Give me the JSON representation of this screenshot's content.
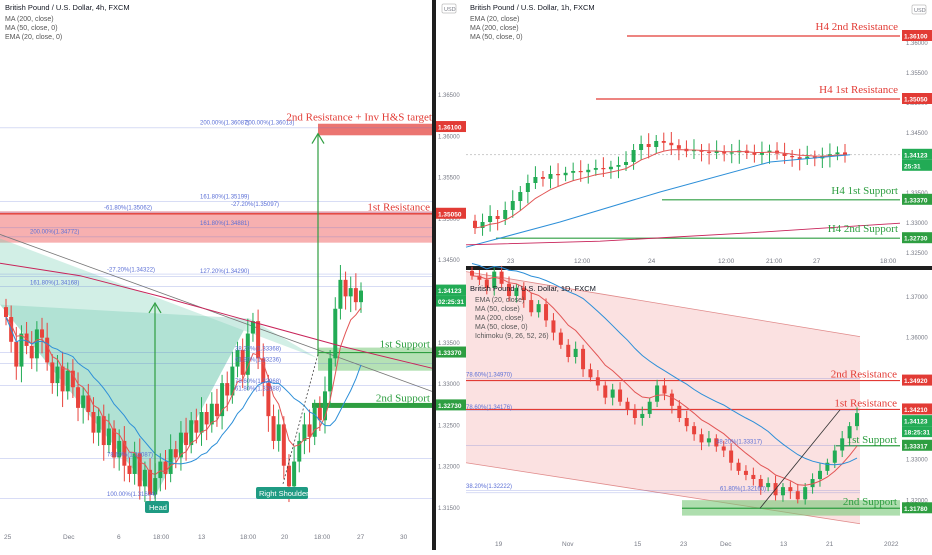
{
  "colors": {
    "up": "#22ab55",
    "down": "#e8433c",
    "resistance": "#e23b35",
    "support": "#2e9e41",
    "ema20": "#e25555",
    "ma50": "#2d8fd8",
    "ma200": "#c8245a",
    "fib": "#5b6fd6",
    "pattern_fill": "#bfe6dc",
    "zone_red": "#f07070",
    "zone_green": "#78c878"
  },
  "icons": {
    "axis_unit": "usd-badge-icon"
  },
  "left_chart": {
    "header": {
      "title": "British Pound / U.S. Dollar, 4h, FXCM",
      "indicators": [
        "MA (200, close)",
        "MA (50, close, 0)",
        "EMA (20, close, 0)"
      ]
    },
    "unit": "USD",
    "price_ticks": [
      "1.36500",
      "1.36000",
      "1.35500",
      "1.35000",
      "1.34500",
      "1.34000",
      "1.33500",
      "1.33000",
      "1.32500",
      "1.32000",
      "1.31500"
    ],
    "date_ticks": [
      "25",
      "Dec",
      "6",
      "18:00",
      "13",
      "18:00",
      "20",
      "18:00",
      "27",
      "30"
    ],
    "price_tags": [
      "1.36100",
      "1.35050",
      "1.34123",
      "02:25:31",
      "1.33370",
      "1.32730"
    ],
    "levels": [
      "2nd Resistance + Inv H&S target",
      "1st Resistance",
      "1st Support",
      "2nd Support"
    ],
    "fib_labels": [
      "200.00%(1.36087)",
      "200.00%(1.36013)",
      "161.80%(1.35199)",
      "-61.80%(1.35062)",
      "-27.20%(1.35097)",
      "161.80%(1.34881)",
      "200.00%(1.34772)",
      "-27.20%(1.34322)",
      "127.20%(1.34290)",
      "161.80%(1.34168)",
      "38.20%(1.33368)",
      "61.80%(1.33236)",
      "78.60%(1.32968)",
      "61.80%(1.32888)",
      "78.60%(1.32087)",
      "100.00%(1.31604)"
    ],
    "pattern_labels": [
      "Head",
      "Right Shoulder"
    ]
  },
  "top_right_chart": {
    "header": {
      "title": "British Pound / U.S. Dollar, 1h, FXCM",
      "indicators": [
        "EMA (20, close)",
        "MA (200, close)",
        "MA (50, close, 0)"
      ]
    },
    "unit": "USD",
    "price_ticks": [
      "1.36000",
      "1.35500",
      "1.35000",
      "1.34500",
      "1.33500",
      "1.33000",
      "1.32500"
    ],
    "date_ticks": [
      "23",
      "12:00",
      "24",
      "12:00",
      "21:00",
      "27",
      "18:00"
    ],
    "price_tags": [
      "1.36100",
      "1.35050",
      "1.34123",
      "25:31",
      "1.33370",
      "1.32730"
    ],
    "levels": [
      "H4 2nd Resistance",
      "H4 1st Resistance",
      "H4 1st Support",
      "H4 2nd Support"
    ]
  },
  "bottom_right_chart": {
    "header": {
      "title": "British Pound / U.S. Dollar, 1D, FXCM",
      "indicators": [
        "EMA (20, close)",
        "MA (50, close)",
        "MA (200, close)",
        "MA (50, close, 0)",
        "Ichimoku (9, 26, 52, 26)"
      ]
    },
    "price_ticks": [
      "1.37000",
      "1.36000",
      "1.35000",
      "1.34000",
      "1.33000",
      "1.32000",
      "1.31000"
    ],
    "date_ticks": [
      "19",
      "Nov",
      "15",
      "23",
      "Dec",
      "13",
      "21",
      "2022"
    ],
    "price_tags": [
      "1.34920",
      "1.34210",
      "1.34123",
      "18:25:31",
      "1.33317",
      "1.31780"
    ],
    "levels": [
      "2nd Resistance",
      "1st Resistance",
      "1st Support",
      "2nd Support"
    ],
    "fib_labels": [
      "78.60%(1.34970)",
      "78.60%(1.34176)",
      "38.20%(1.33317)",
      "61.80%(1.32160)",
      "38.20%(1.32222)"
    ]
  },
  "chart_data": [
    {
      "type": "candlestick",
      "title": "British Pound / U.S. Dollar, 4h, FXCM",
      "ylim": [
        1.3125,
        1.3668
      ],
      "grid": false,
      "levels": {
        "2nd Resistance + Inv H&S target": 1.361,
        "1st Resistance": 1.3505,
        "1st Support": 1.3337,
        "2nd Support": 1.3273
      },
      "series": [
        {
          "name": "GBPUSD 4h",
          "close": [
            1.338,
            1.335,
            1.332,
            1.336,
            1.3345,
            1.333,
            1.3365,
            1.3355,
            1.3325,
            1.33,
            1.332,
            1.329,
            1.3315,
            1.3295,
            1.327,
            1.3285,
            1.3265,
            1.324,
            1.326,
            1.3225,
            1.3245,
            1.321,
            1.323,
            1.32,
            1.319,
            1.3215,
            1.3175,
            1.3195,
            1.3165,
            1.3185,
            1.3205,
            1.319,
            1.322,
            1.321,
            1.324,
            1.3225,
            1.3255,
            1.324,
            1.3265,
            1.325,
            1.3275,
            1.326,
            1.33,
            1.3285,
            1.332,
            1.334,
            1.331,
            1.336,
            1.3375,
            1.333,
            1.33,
            1.326,
            1.323,
            1.325,
            1.32,
            1.3175,
            1.3205,
            1.323,
            1.325,
            1.3235,
            1.327,
            1.3255,
            1.329,
            1.333,
            1.339,
            1.3425,
            1.3405,
            1.3415,
            1.3398,
            1.3412
          ]
        }
      ]
    },
    {
      "type": "candlestick",
      "title": "British Pound / U.S. Dollar, 1h, FXCM",
      "ylim": [
        1.3228,
        1.3652
      ],
      "grid": false,
      "levels": {
        "H4 2nd Resistance": 1.361,
        "H4 1st Resistance": 1.3505,
        "H4 1st Support": 1.3337,
        "H4 2nd Support": 1.3273
      },
      "series": [
        {
          "name": "GBPUSD 1h",
          "close": [
            1.329,
            1.33,
            1.331,
            1.3305,
            1.332,
            1.3335,
            1.335,
            1.3365,
            1.3375,
            1.3372,
            1.338,
            1.3378,
            1.3382,
            1.3385,
            1.3383,
            1.3387,
            1.339,
            1.3388,
            1.3392,
            1.3395,
            1.34,
            1.342,
            1.343,
            1.3425,
            1.3435,
            1.3432,
            1.3428,
            1.3422,
            1.3418,
            1.342,
            1.3417,
            1.3415,
            1.3418,
            1.3414,
            1.3416,
            1.3419,
            1.3415,
            1.3412,
            1.3416,
            1.3419,
            1.3414,
            1.341,
            1.3408,
            1.3405,
            1.3409,
            1.3406,
            1.341,
            1.3413,
            1.3416,
            1.3412
          ]
        }
      ]
    },
    {
      "type": "candlestick",
      "title": "British Pound / U.S. Dollar, 1D, FXCM",
      "ylim": [
        1.3107,
        1.372
      ],
      "grid": false,
      "levels": {
        "2nd Resistance": 1.3492,
        "1st Resistance": 1.3421,
        "1st Support": 1.33317,
        "2nd Support": 1.3178
      },
      "series": [
        {
          "name": "GBPUSD 1D",
          "close": [
            1.375,
            1.374,
            1.372,
            1.376,
            1.373,
            1.37,
            1.372,
            1.369,
            1.366,
            1.368,
            1.364,
            1.361,
            1.358,
            1.355,
            1.357,
            1.352,
            1.35,
            1.348,
            1.345,
            1.347,
            1.344,
            1.342,
            1.34,
            1.341,
            1.344,
            1.348,
            1.346,
            1.343,
            1.34,
            1.338,
            1.336,
            1.334,
            1.335,
            1.333,
            1.332,
            1.329,
            1.327,
            1.326,
            1.325,
            1.323,
            1.324,
            1.321,
            1.323,
            1.322,
            1.32,
            1.323,
            1.325,
            1.327,
            1.329,
            1.332,
            1.335,
            1.338,
            1.3412
          ]
        }
      ]
    }
  ]
}
